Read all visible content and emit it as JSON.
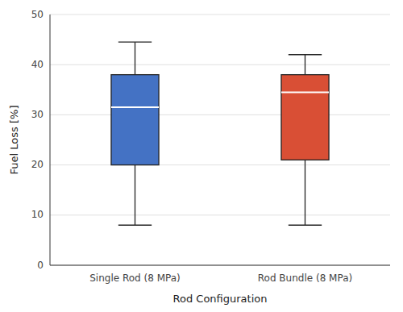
{
  "chart_data": {
    "type": "box",
    "xlabel": "Rod Configuration",
    "ylabel": "Fuel Loss [%]",
    "categories": [
      "Single Rod (8 MPa)",
      "Rod Bundle (8 MPa)"
    ],
    "values": [
      {
        "whislo": 8,
        "q1": 20,
        "med": 31.5,
        "q3": 38,
        "whishi": 44.5
      },
      {
        "whislo": 8,
        "q1": 21,
        "med": 34.5,
        "q3": 38,
        "whishi": 42
      }
    ],
    "colors": [
      "#4472C4",
      "#D94F35"
    ],
    "ylim": [
      0,
      50
    ],
    "yticks": [
      0,
      10,
      20,
      30,
      40,
      50
    ],
    "grid": true
  }
}
